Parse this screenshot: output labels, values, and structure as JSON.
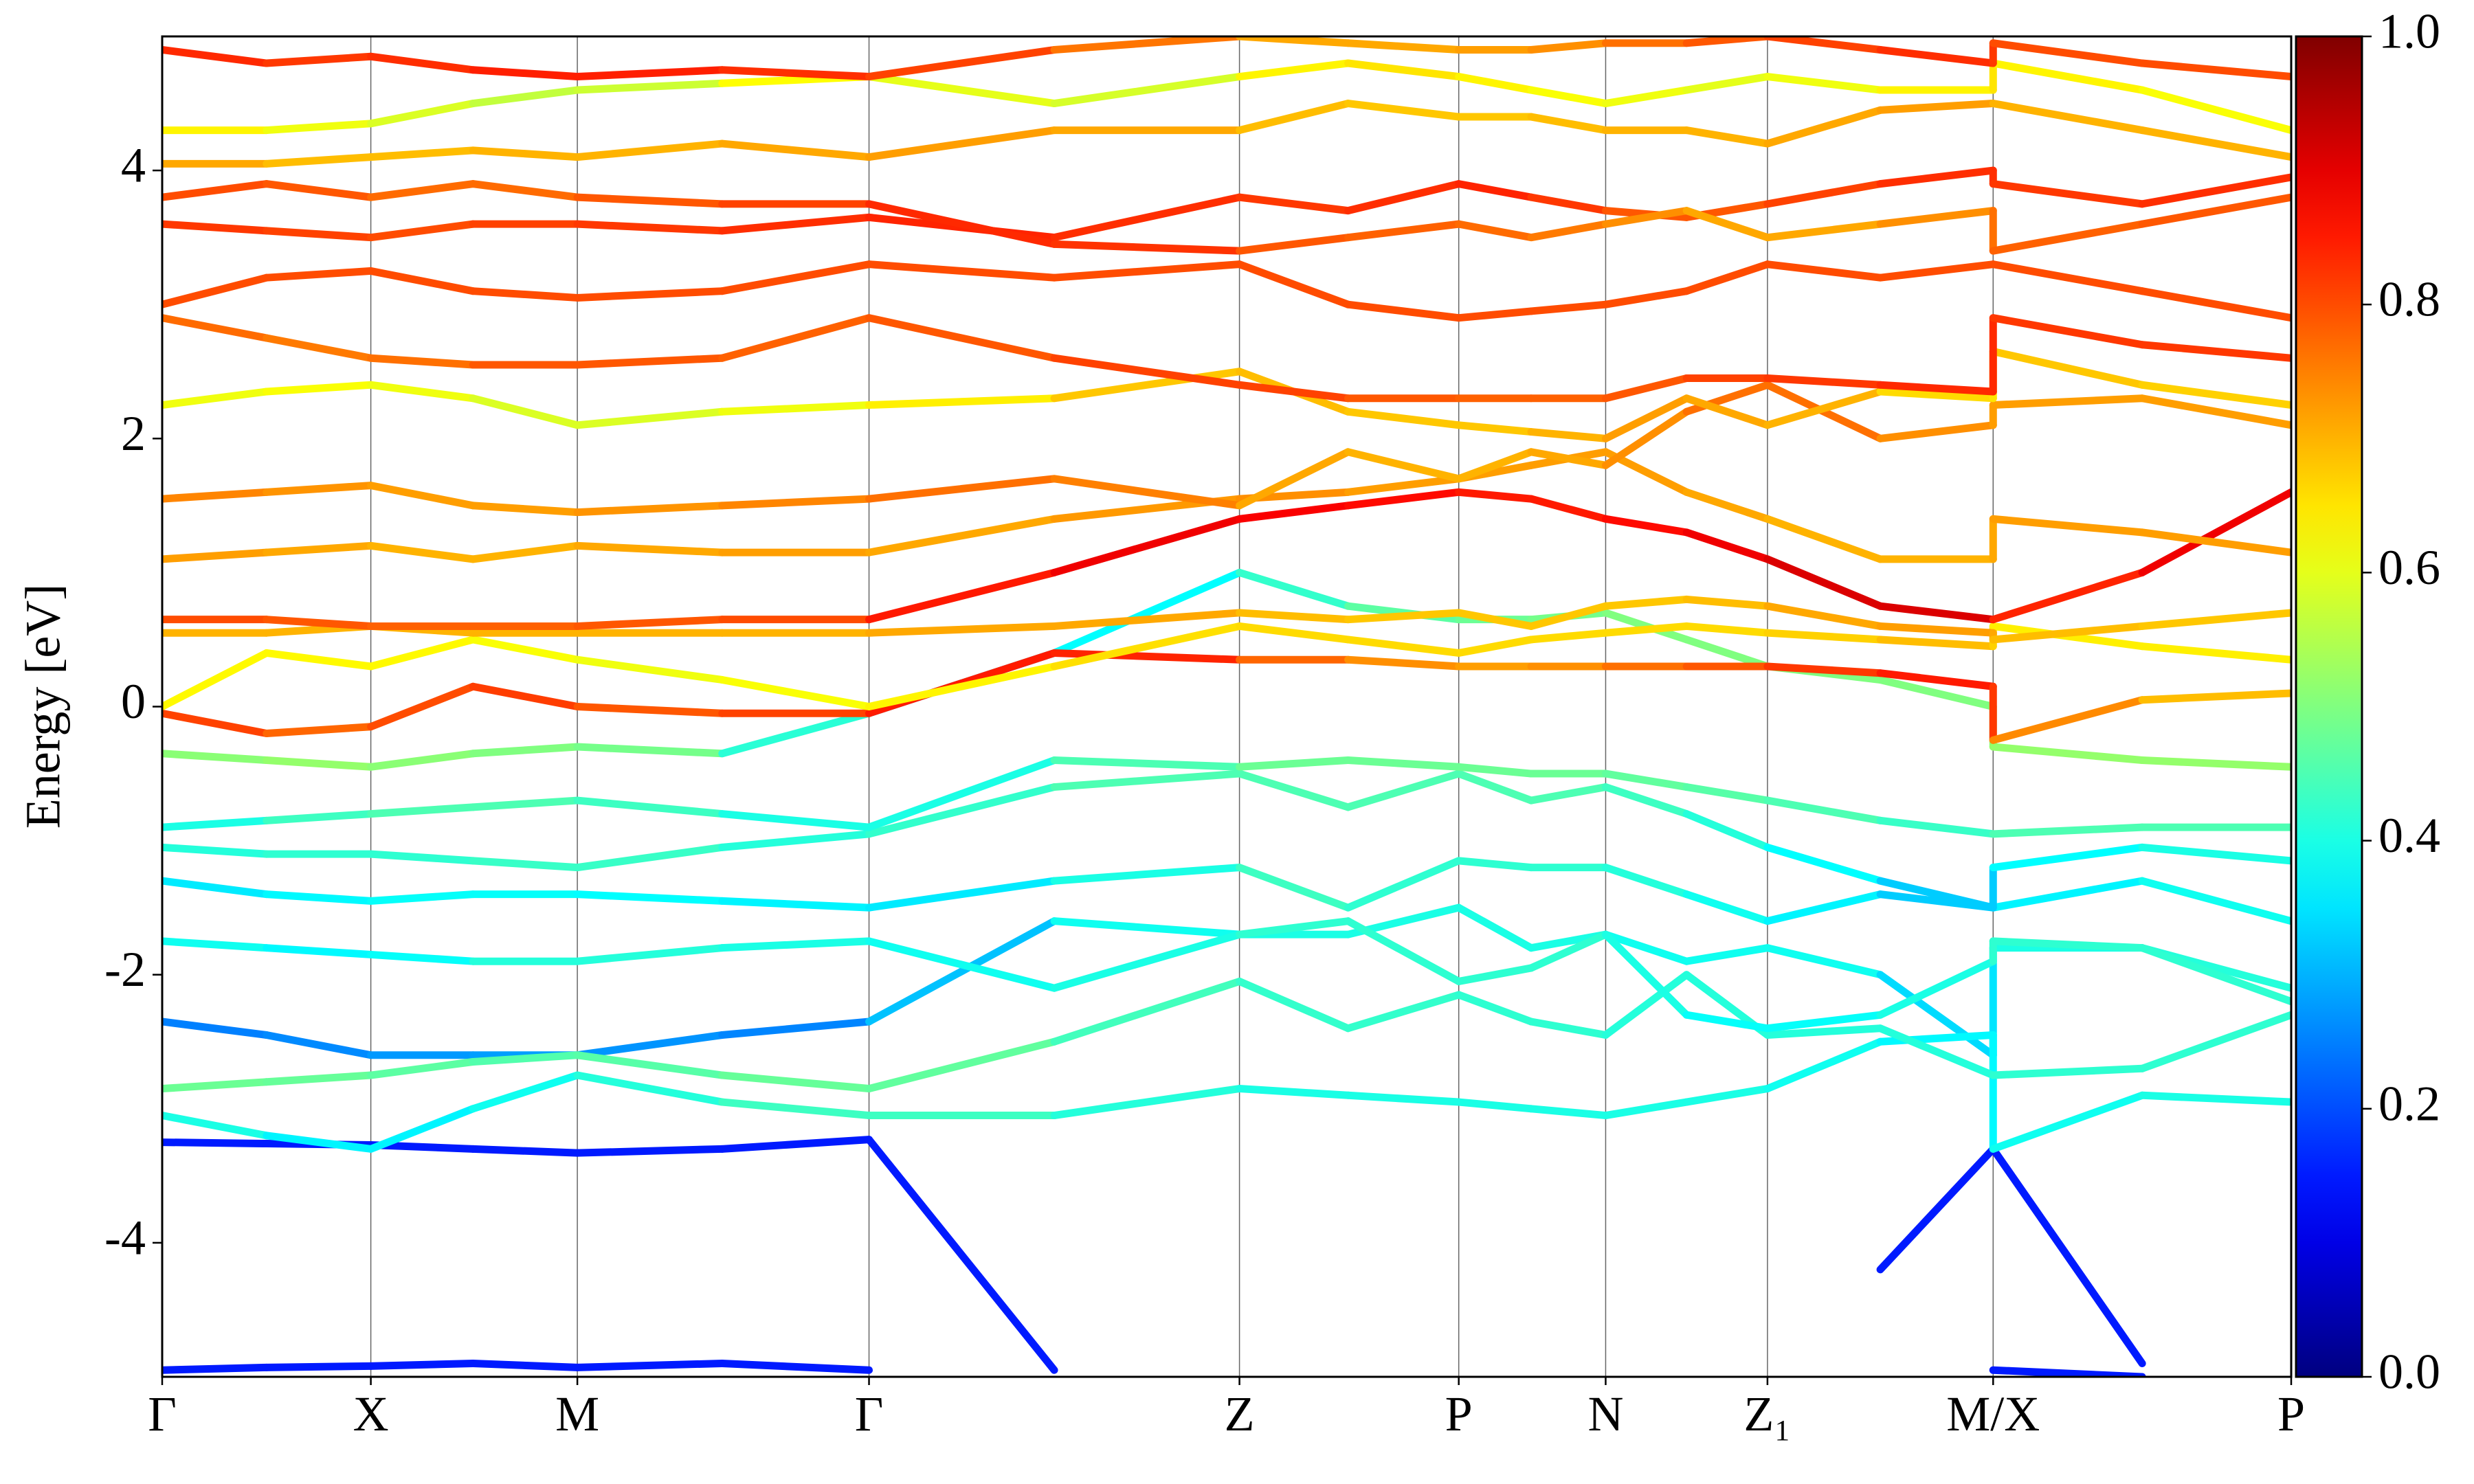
{
  "chart_data": {
    "type": "band-structure",
    "y_label": "Energy [eV]",
    "xlim": [
      0,
      1
    ],
    "xticks": [
      {
        "value": 0,
        "label": "Γ"
      },
      {
        "value": 0.098,
        "label": "X"
      },
      {
        "value": 0.195,
        "label": "M"
      },
      {
        "value": 0.332,
        "label": "Γ"
      },
      {
        "value": 0.506,
        "label": "Z"
      },
      {
        "value": 0.609,
        "label": "P"
      },
      {
        "value": 0.678,
        "label": "N"
      },
      {
        "value": 0.754,
        "label": "Z₁"
      },
      {
        "value": 0.86,
        "label": "M/X"
      },
      {
        "value": 1,
        "label": "P"
      }
    ],
    "ylim": [
      -5,
      5
    ],
    "yticks": [
      -4,
      -2,
      0,
      2,
      4
    ],
    "colormap": "jet",
    "clim": [
      0,
      1
    ],
    "cticks": [
      {
        "value": 0,
        "label": "0.0"
      },
      0.2,
      0.4,
      0.6,
      0.8,
      {
        "value": 1,
        "label": "1.0"
      }
    ],
    "x": [
      0,
      0.049,
      0.098,
      0.146,
      0.195,
      0.263,
      0.332,
      0.419,
      0.506,
      0.557,
      0.609,
      0.643,
      0.678,
      0.716,
      0.754,
      0.807,
      0.86,
      0.86,
      0.93,
      1.0
    ],
    "series": [
      {
        "values": [
          -4.95,
          -4.93,
          -4.92,
          -4.9,
          -4.93,
          -4.9,
          -4.95,
          null,
          null,
          null,
          null,
          null,
          null,
          null,
          null,
          null,
          -4.95,
          -4.95,
          -5.0,
          null
        ],
        "weights": [
          0.15,
          0.15,
          0.15,
          0.15,
          0.15,
          0.15,
          0.15,
          null,
          null,
          null,
          null,
          null,
          null,
          null,
          null,
          null,
          0.15,
          0.15,
          0.15,
          null
        ]
      },
      {
        "values": [
          -3.25,
          -3.26,
          -3.27,
          -3.3,
          -3.33,
          -3.3,
          -3.23,
          -4.95,
          null,
          null,
          null,
          null,
          null,
          null,
          null,
          -4.2,
          -3.3,
          -3.3,
          -4.9,
          null
        ],
        "weights": [
          0.15,
          0.15,
          0.15,
          0.15,
          0.15,
          0.15,
          0.15,
          0.15,
          null,
          null,
          null,
          null,
          null,
          null,
          null,
          0.15,
          0.15,
          0.15,
          0.15,
          null
        ]
      },
      {
        "values": [
          -2.35,
          -2.45,
          -2.6,
          -2.6,
          -2.6,
          -2.45,
          -2.35,
          -1.6,
          -1.7,
          -1.7,
          -1.5,
          -1.8,
          -1.7,
          -1.9,
          -1.8,
          -2.0,
          -2.6,
          -1.8,
          -1.8,
          -2.1
        ],
        "weights": [
          0.25,
          0.25,
          0.27,
          0.28,
          0.28,
          0.26,
          0.25,
          0.38,
          0.4,
          0.4,
          0.4,
          0.4,
          0.4,
          0.38,
          0.4,
          0.38,
          0.3,
          0.4,
          0.4,
          0.42
        ]
      },
      {
        "values": [
          -3.05,
          -3.2,
          -3.3,
          -3.0,
          -2.75,
          -2.95,
          -3.05,
          -3.05,
          -2.85,
          -2.9,
          -2.95,
          -3.0,
          -3.05,
          -2.95,
          -2.85,
          -2.5,
          -2.45,
          -3.3,
          -2.9,
          -2.95
        ],
        "weights": [
          0.42,
          0.38,
          0.35,
          0.38,
          0.4,
          0.42,
          0.45,
          0.42,
          0.4,
          0.4,
          0.4,
          0.4,
          0.4,
          0.4,
          0.4,
          0.38,
          0.36,
          0.38,
          0.4,
          0.4
        ]
      },
      {
        "values": [
          -2.85,
          -2.8,
          -2.75,
          -2.65,
          -2.6,
          -2.75,
          -2.85,
          -2.5,
          -2.05,
          -2.4,
          -2.15,
          -2.35,
          -2.45,
          -2.0,
          -2.45,
          -2.4,
          -2.75,
          -2.75,
          -2.7,
          -2.3
        ],
        "weights": [
          0.48,
          0.48,
          0.47,
          0.46,
          0.45,
          0.47,
          0.48,
          0.46,
          0.42,
          0.43,
          0.42,
          0.42,
          0.42,
          0.4,
          0.42,
          0.4,
          0.42,
          0.42,
          0.42,
          0.42
        ]
      },
      {
        "values": [
          -1.75,
          -1.8,
          -1.85,
          -1.9,
          -1.9,
          -1.8,
          -1.75,
          -2.1,
          -1.7,
          -1.6,
          -2.05,
          -1.95,
          -1.7,
          -2.3,
          -2.4,
          -2.3,
          -1.9,
          -1.75,
          -1.8,
          -2.2
        ],
        "weights": [
          0.4,
          0.38,
          0.36,
          0.4,
          0.42,
          0.4,
          0.4,
          0.38,
          0.42,
          0.42,
          0.42,
          0.42,
          0.42,
          0.38,
          0.38,
          0.38,
          0.42,
          0.42,
          0.42,
          0.42
        ]
      },
      {
        "values": [
          -1.3,
          -1.4,
          -1.45,
          -1.4,
          -1.4,
          -1.45,
          -1.5,
          -1.3,
          -1.2,
          -1.5,
          -1.15,
          -1.2,
          -1.2,
          -1.4,
          -1.6,
          -1.4,
          -1.5,
          -1.5,
          -1.3,
          -1.6
        ],
        "weights": [
          0.35,
          0.36,
          0.38,
          0.38,
          0.38,
          0.37,
          0.36,
          0.35,
          0.45,
          0.42,
          0.42,
          0.42,
          0.42,
          0.4,
          0.38,
          0.35,
          0.3,
          0.35,
          0.38,
          0.4
        ]
      },
      {
        "values": [
          -1.05,
          -1.1,
          -1.1,
          -1.15,
          -1.2,
          -1.05,
          -0.95,
          -0.6,
          -0.5,
          -0.75,
          -0.5,
          -0.7,
          -0.6,
          -0.8,
          -1.05,
          -1.3,
          -1.5,
          -1.2,
          -1.05,
          -1.15
        ],
        "weights": [
          0.4,
          0.42,
          0.42,
          0.42,
          0.44,
          0.42,
          0.4,
          0.45,
          0.45,
          0.45,
          0.45,
          0.45,
          0.45,
          0.42,
          0.4,
          0.35,
          0.3,
          0.35,
          0.4,
          0.4
        ]
      },
      {
        "values": [
          -0.9,
          -0.85,
          -0.8,
          -0.75,
          -0.7,
          -0.8,
          -0.9,
          -0.4,
          -0.45,
          -0.4,
          -0.45,
          -0.5,
          -0.5,
          -0.6,
          -0.7,
          -0.85,
          -0.95,
          -0.95,
          -0.9,
          -0.9
        ],
        "weights": [
          0.38,
          0.42,
          0.45,
          0.45,
          0.45,
          0.42,
          0.38,
          0.42,
          0.48,
          0.48,
          0.48,
          0.48,
          0.48,
          0.46,
          0.46,
          0.44,
          0.42,
          0.45,
          0.45,
          0.45
        ]
      },
      {
        "values": [
          -0.35,
          -0.4,
          -0.45,
          -0.35,
          -0.3,
          -0.35,
          -0.05,
          0.4,
          1.0,
          0.75,
          0.65,
          0.65,
          0.7,
          0.5,
          0.3,
          0.2,
          0.0,
          -0.3,
          -0.4,
          -0.45
        ],
        "weights": [
          0.5,
          0.52,
          0.52,
          0.5,
          0.5,
          0.48,
          0.35,
          0.35,
          0.4,
          0.45,
          0.48,
          0.48,
          0.5,
          0.5,
          0.5,
          0.5,
          0.5,
          0.52,
          0.52,
          0.52
        ]
      },
      {
        "values": [
          -0.05,
          -0.2,
          -0.15,
          0.15,
          0.0,
          -0.05,
          -0.05,
          0.4,
          0.35,
          0.35,
          0.3,
          0.3,
          0.3,
          0.3,
          0.3,
          0.25,
          0.15,
          -0.25,
          0.05,
          0.1
        ],
        "weights": [
          0.82,
          0.8,
          0.75,
          0.85,
          0.78,
          0.8,
          0.82,
          0.88,
          0.8,
          0.75,
          0.72,
          0.72,
          0.75,
          0.78,
          0.8,
          0.84,
          0.86,
          0.78,
          0.7,
          0.68
        ]
      },
      {
        "values": [
          0.0,
          0.4,
          0.3,
          0.5,
          0.35,
          0.2,
          0.0,
          0.3,
          0.6,
          0.5,
          0.4,
          0.5,
          0.55,
          0.6,
          0.55,
          0.5,
          0.45,
          0.6,
          0.45,
          0.35
        ],
        "weights": [
          0.62,
          0.64,
          0.62,
          0.64,
          0.6,
          0.62,
          0.62,
          0.65,
          0.66,
          0.66,
          0.66,
          0.66,
          0.66,
          0.66,
          0.66,
          0.68,
          0.7,
          0.64,
          0.64,
          0.64
        ]
      },
      {
        "values": [
          0.55,
          0.55,
          0.6,
          0.55,
          0.55,
          0.55,
          0.55,
          0.6,
          0.7,
          0.65,
          0.7,
          0.6,
          0.75,
          0.8,
          0.75,
          0.6,
          0.55,
          0.5,
          0.6,
          0.7
        ],
        "weights": [
          0.7,
          0.7,
          0.7,
          0.7,
          0.7,
          0.7,
          0.7,
          0.72,
          0.7,
          0.68,
          0.68,
          0.68,
          0.68,
          0.68,
          0.7,
          0.72,
          0.72,
          0.7,
          0.68,
          0.68
        ]
      },
      {
        "values": [
          0.65,
          0.65,
          0.6,
          0.6,
          0.6,
          0.65,
          0.65,
          1.0,
          1.4,
          1.5,
          1.6,
          1.55,
          1.4,
          1.3,
          1.1,
          0.75,
          0.65,
          0.65,
          1.0,
          1.6
        ],
        "weights": [
          0.8,
          0.8,
          0.78,
          0.78,
          0.78,
          0.8,
          0.8,
          0.9,
          0.88,
          0.88,
          0.85,
          0.85,
          0.85,
          0.88,
          0.9,
          0.92,
          0.9,
          0.8,
          0.88,
          0.9
        ]
      },
      {
        "values": [
          1.1,
          1.15,
          1.2,
          1.1,
          1.2,
          1.15,
          1.15,
          1.4,
          1.55,
          1.6,
          1.7,
          1.8,
          1.9,
          1.6,
          1.4,
          1.1,
          1.1,
          1.4,
          1.3,
          1.15
        ],
        "weights": [
          0.72,
          0.72,
          0.7,
          0.7,
          0.7,
          0.72,
          0.72,
          0.7,
          0.75,
          0.72,
          0.72,
          0.72,
          0.72,
          0.72,
          0.7,
          0.7,
          0.7,
          0.72,
          0.72,
          0.72
        ]
      },
      {
        "values": [
          1.55,
          1.6,
          1.65,
          1.5,
          1.45,
          1.5,
          1.55,
          1.7,
          1.5,
          1.9,
          1.7,
          1.9,
          1.8,
          2.2,
          2.4,
          2.0,
          2.1,
          2.25,
          2.3,
          2.1
        ],
        "weights": [
          0.75,
          0.74,
          0.72,
          0.72,
          0.72,
          0.74,
          0.75,
          0.78,
          0.72,
          0.7,
          0.7,
          0.7,
          0.72,
          0.75,
          0.78,
          0.75,
          0.72,
          0.72,
          0.72,
          0.72
        ]
      },
      {
        "values": [
          2.25,
          2.35,
          2.4,
          2.3,
          2.1,
          2.2,
          2.25,
          2.3,
          2.5,
          2.2,
          2.1,
          2.05,
          2.0,
          2.3,
          2.1,
          2.35,
          2.3,
          2.65,
          2.4,
          2.25
        ],
        "weights": [
          0.6,
          0.62,
          0.62,
          0.6,
          0.58,
          0.6,
          0.62,
          0.66,
          0.7,
          0.68,
          0.68,
          0.68,
          0.72,
          0.72,
          0.7,
          0.7,
          0.62,
          0.68,
          0.68,
          0.66
        ]
      },
      {
        "values": [
          2.9,
          2.75,
          2.6,
          2.55,
          2.55,
          2.6,
          2.9,
          2.6,
          2.4,
          2.3,
          2.3,
          2.3,
          2.3,
          2.45,
          2.45,
          2.4,
          2.35,
          2.9,
          2.7,
          2.6
        ],
        "weights": [
          0.78,
          0.76,
          0.75,
          0.78,
          0.8,
          0.78,
          0.78,
          0.8,
          0.82,
          0.8,
          0.78,
          0.78,
          0.78,
          0.8,
          0.82,
          0.82,
          0.85,
          0.82,
          0.82,
          0.82
        ]
      },
      {
        "values": [
          3.0,
          3.2,
          3.25,
          3.1,
          3.05,
          3.1,
          3.3,
          3.2,
          3.3,
          3.0,
          2.9,
          2.95,
          3.0,
          3.1,
          3.3,
          3.2,
          3.3,
          3.3,
          3.1,
          2.9
        ],
        "weights": [
          0.8,
          0.8,
          0.8,
          0.8,
          0.8,
          0.8,
          0.8,
          0.8,
          0.8,
          0.8,
          0.8,
          0.8,
          0.8,
          0.8,
          0.8,
          0.8,
          0.8,
          0.8,
          0.8,
          0.8
        ]
      },
      {
        "values": [
          3.6,
          3.55,
          3.5,
          3.6,
          3.6,
          3.55,
          3.65,
          3.5,
          3.8,
          3.7,
          3.9,
          3.8,
          3.7,
          3.65,
          3.75,
          3.9,
          4.0,
          3.9,
          3.75,
          3.95
        ],
        "weights": [
          0.82,
          0.82,
          0.8,
          0.8,
          0.82,
          0.82,
          0.84,
          0.84,
          0.82,
          0.82,
          0.84,
          0.84,
          0.8,
          0.78,
          0.8,
          0.82,
          0.84,
          0.82,
          0.82,
          0.84
        ]
      },
      {
        "values": [
          3.8,
          3.9,
          3.8,
          3.9,
          3.8,
          3.75,
          3.75,
          3.45,
          3.4,
          3.5,
          3.6,
          3.5,
          3.6,
          3.7,
          3.5,
          3.6,
          3.7,
          3.4,
          3.6,
          3.8
        ],
        "weights": [
          0.8,
          0.8,
          0.78,
          0.76,
          0.78,
          0.8,
          0.82,
          0.85,
          0.8,
          0.78,
          0.78,
          0.76,
          0.75,
          0.72,
          0.7,
          0.72,
          0.75,
          0.78,
          0.78,
          0.8
        ]
      },
      {
        "values": [
          4.05,
          4.05,
          4.1,
          4.15,
          4.1,
          4.2,
          4.1,
          4.3,
          4.3,
          4.5,
          4.4,
          4.4,
          4.3,
          4.3,
          4.2,
          4.45,
          4.5,
          4.5,
          4.3,
          4.1
        ],
        "weights": [
          0.72,
          0.7,
          0.68,
          0.7,
          0.7,
          0.7,
          0.72,
          0.72,
          0.7,
          0.68,
          0.68,
          0.68,
          0.7,
          0.7,
          0.7,
          0.72,
          0.72,
          0.7,
          0.7,
          0.7
        ]
      },
      {
        "values": [
          4.3,
          4.3,
          4.35,
          4.5,
          4.6,
          4.65,
          4.7,
          4.5,
          4.7,
          4.8,
          4.7,
          4.6,
          4.5,
          4.6,
          4.7,
          4.6,
          4.6,
          4.8,
          4.6,
          4.3
        ],
        "weights": [
          0.65,
          0.62,
          0.6,
          0.58,
          0.55,
          0.6,
          0.65,
          0.55,
          0.62,
          0.65,
          0.65,
          0.62,
          0.62,
          0.6,
          0.6,
          0.62,
          0.65,
          0.65,
          0.62,
          0.62
        ]
      },
      {
        "values": [
          4.9,
          4.8,
          4.85,
          4.75,
          4.7,
          4.75,
          4.7,
          4.9,
          5.0,
          4.95,
          4.9,
          4.9,
          4.95,
          4.95,
          5.0,
          4.9,
          4.8,
          4.95,
          4.8,
          4.7
        ],
        "weights": [
          0.85,
          0.82,
          0.82,
          0.84,
          0.85,
          0.84,
          0.82,
          0.8,
          0.72,
          0.7,
          0.72,
          0.72,
          0.75,
          0.78,
          0.8,
          0.82,
          0.84,
          0.8,
          0.8,
          0.8
        ]
      }
    ]
  }
}
